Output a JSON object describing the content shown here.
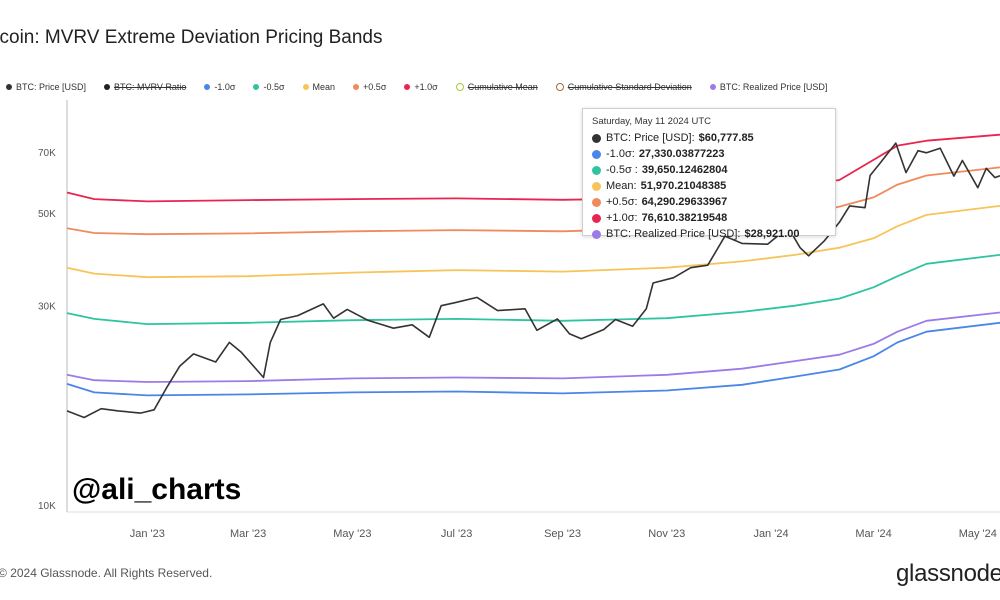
{
  "title": "itcoin: MVRV Extreme Deviation Pricing Bands",
  "legend": [
    {
      "label": "BTC: Price [USD]",
      "color": "#333333",
      "strike": false,
      "kind": "dot"
    },
    {
      "label": "BTC: MVRV Ratio",
      "color": "#222222",
      "strike": true,
      "kind": "dot"
    },
    {
      "label": "-1.0σ",
      "color": "#4a86e8",
      "strike": false,
      "kind": "dot"
    },
    {
      "label": "-0.5σ",
      "color": "#2ec4a0",
      "strike": false,
      "kind": "dot"
    },
    {
      "label": "Mean",
      "color": "#f7c45a",
      "strike": false,
      "kind": "dot"
    },
    {
      "label": "+0.5σ",
      "color": "#f08a5d",
      "strike": false,
      "kind": "dot"
    },
    {
      "label": "+1.0σ",
      "color": "#e8254f",
      "strike": false,
      "kind": "dot"
    },
    {
      "label": "Cumulative Mean",
      "color": "#a8c93a",
      "strike": true,
      "kind": "line"
    },
    {
      "label": "Cumulative Standard Deviation",
      "color": "#a0723a",
      "strike": true,
      "kind": "line"
    },
    {
      "label": "BTC: Realized Price [USD]",
      "color": "#9b7be8",
      "strike": false,
      "kind": "dot"
    }
  ],
  "tooltip": {
    "date": "Saturday, May 11 2024 UTC",
    "rows": [
      {
        "label": "BTC: Price [USD]:",
        "value": "$60,777.85",
        "color": "#333333"
      },
      {
        "label": "-1.0σ:",
        "value": "27,330.03877223",
        "color": "#4a86e8"
      },
      {
        "label": "-0.5σ :",
        "value": "39,650.12462804",
        "color": "#2ec4a0"
      },
      {
        "label": "Mean:",
        "value": "51,970.21048385",
        "color": "#f7c45a"
      },
      {
        "label": "+0.5σ:",
        "value": "64,290.29633967",
        "color": "#f08a5d"
      },
      {
        "label": "+1.0σ:",
        "value": "76,610.38219548",
        "color": "#e8254f"
      },
      {
        "label": "BTC: Realized Price [USD]:",
        "value": "$28,921.00",
        "color": "#9b7be8"
      }
    ]
  },
  "watermark": "@ali_charts",
  "copyright": "2024 Glassnode. All Rights Reserved.",
  "brand": "glassnode",
  "chart_data": {
    "type": "line",
    "title": "itcoin: MVRV Extreme Deviation Pricing Bands",
    "y_scale": "log",
    "ylim": [
      10000,
      78000
    ],
    "x_range": [
      "2022-11-15",
      "2024-05-14"
    ],
    "x_ticks": [
      "Jan '23",
      "Mar '23",
      "May '23",
      "Jul '23",
      "Sep '23",
      "Nov '23",
      "Jan '24",
      "Mar '24",
      "May '24"
    ],
    "x_tick_dates": [
      "2023-01-01",
      "2023-03-01",
      "2023-05-01",
      "2023-07-01",
      "2023-09-01",
      "2023-11-01",
      "2024-01-01",
      "2024-03-01",
      "2024-05-01"
    ],
    "y_ticks": [
      10000,
      30000,
      50000,
      70000
    ],
    "y_tick_labels": [
      "10K",
      "30K",
      "50K",
      "70K"
    ],
    "grid": false,
    "legend_position": "top",
    "series": [
      {
        "name": "+1.0σ",
        "color": "#e8254f",
        "points": [
          [
            "2022-11-15",
            56000
          ],
          [
            "2022-12-01",
            54000
          ],
          [
            "2023-01-01",
            53300
          ],
          [
            "2023-03-01",
            53700
          ],
          [
            "2023-05-01",
            54000
          ],
          [
            "2023-07-01",
            54200
          ],
          [
            "2023-09-01",
            53800
          ],
          [
            "2023-11-01",
            54300
          ],
          [
            "2023-12-15",
            56000
          ],
          [
            "2024-01-15",
            58000
          ],
          [
            "2024-02-10",
            60000
          ],
          [
            "2024-03-01",
            67000
          ],
          [
            "2024-03-15",
            72500
          ],
          [
            "2024-04-01",
            74500
          ],
          [
            "2024-05-14",
            77000
          ]
        ]
      },
      {
        "name": "+0.5σ",
        "color": "#f08a5d",
        "points": [
          [
            "2022-11-15",
            46000
          ],
          [
            "2022-12-01",
            44800
          ],
          [
            "2023-01-01",
            44500
          ],
          [
            "2023-03-01",
            44700
          ],
          [
            "2023-05-01",
            45200
          ],
          [
            "2023-07-01",
            45500
          ],
          [
            "2023-09-01",
            45200
          ],
          [
            "2023-11-01",
            46000
          ],
          [
            "2023-12-15",
            47200
          ],
          [
            "2024-01-15",
            49000
          ],
          [
            "2024-02-10",
            51800
          ],
          [
            "2024-03-01",
            54500
          ],
          [
            "2024-03-15",
            58500
          ],
          [
            "2024-04-01",
            61500
          ],
          [
            "2024-05-14",
            64300
          ]
        ]
      },
      {
        "name": "Mean",
        "color": "#f7c45a",
        "points": [
          [
            "2022-11-15",
            37000
          ],
          [
            "2022-12-01",
            35800
          ],
          [
            "2023-01-01",
            35100
          ],
          [
            "2023-03-01",
            35300
          ],
          [
            "2023-05-01",
            36000
          ],
          [
            "2023-07-01",
            36500
          ],
          [
            "2023-09-01",
            36200
          ],
          [
            "2023-11-01",
            37000
          ],
          [
            "2023-12-15",
            38300
          ],
          [
            "2024-01-15",
            39700
          ],
          [
            "2024-02-10",
            41300
          ],
          [
            "2024-03-01",
            43500
          ],
          [
            "2024-03-15",
            46500
          ],
          [
            "2024-04-01",
            49500
          ],
          [
            "2024-05-14",
            52000
          ]
        ]
      },
      {
        "name": "-0.5σ",
        "color": "#2ec4a0",
        "points": [
          [
            "2022-11-15",
            28800
          ],
          [
            "2022-12-01",
            27900
          ],
          [
            "2023-01-01",
            27100
          ],
          [
            "2023-03-01",
            27300
          ],
          [
            "2023-05-01",
            27700
          ],
          [
            "2023-07-01",
            27900
          ],
          [
            "2023-09-01",
            27600
          ],
          [
            "2023-11-01",
            28000
          ],
          [
            "2023-12-15",
            29000
          ],
          [
            "2024-01-15",
            30000
          ],
          [
            "2024-02-10",
            31200
          ],
          [
            "2024-03-01",
            33200
          ],
          [
            "2024-03-15",
            35300
          ],
          [
            "2024-04-01",
            37800
          ],
          [
            "2024-05-14",
            39700
          ]
        ]
      },
      {
        "name": "BTC: Realized Price [USD]",
        "color": "#9b7be8",
        "points": [
          [
            "2022-11-15",
            20500
          ],
          [
            "2022-12-01",
            19900
          ],
          [
            "2023-01-01",
            19700
          ],
          [
            "2023-03-01",
            19800
          ],
          [
            "2023-05-01",
            20100
          ],
          [
            "2023-07-01",
            20200
          ],
          [
            "2023-09-01",
            20100
          ],
          [
            "2023-11-01",
            20500
          ],
          [
            "2023-12-15",
            21200
          ],
          [
            "2024-01-15",
            22100
          ],
          [
            "2024-02-10",
            22900
          ],
          [
            "2024-03-01",
            24300
          ],
          [
            "2024-03-15",
            26000
          ],
          [
            "2024-04-01",
            27600
          ],
          [
            "2024-05-14",
            28900
          ]
        ]
      },
      {
        "name": "-1.0σ",
        "color": "#4a86e8",
        "points": [
          [
            "2022-11-15",
            19500
          ],
          [
            "2022-12-01",
            18600
          ],
          [
            "2023-01-01",
            18300
          ],
          [
            "2023-03-01",
            18400
          ],
          [
            "2023-05-01",
            18600
          ],
          [
            "2023-07-01",
            18700
          ],
          [
            "2023-09-01",
            18500
          ],
          [
            "2023-11-01",
            18800
          ],
          [
            "2023-12-15",
            19400
          ],
          [
            "2024-01-15",
            20300
          ],
          [
            "2024-02-10",
            21100
          ],
          [
            "2024-03-01",
            22700
          ],
          [
            "2024-03-15",
            24500
          ],
          [
            "2024-04-01",
            26000
          ],
          [
            "2024-05-14",
            27300
          ]
        ]
      },
      {
        "name": "BTC: Price [USD]",
        "color": "#333333",
        "points": [
          [
            "2022-11-15",
            16800
          ],
          [
            "2022-11-25",
            16200
          ],
          [
            "2022-12-05",
            17000
          ],
          [
            "2022-12-15",
            16800
          ],
          [
            "2022-12-28",
            16600
          ],
          [
            "2023-01-05",
            16900
          ],
          [
            "2023-01-12",
            19000
          ],
          [
            "2023-01-20",
            21500
          ],
          [
            "2023-01-28",
            23000
          ],
          [
            "2023-02-10",
            22000
          ],
          [
            "2023-02-18",
            24500
          ],
          [
            "2023-02-25",
            23200
          ],
          [
            "2023-03-10",
            20200
          ],
          [
            "2023-03-14",
            24500
          ],
          [
            "2023-03-20",
            27800
          ],
          [
            "2023-03-30",
            28400
          ],
          [
            "2023-04-14",
            30300
          ],
          [
            "2023-04-20",
            28000
          ],
          [
            "2023-04-28",
            29400
          ],
          [
            "2023-05-10",
            27700
          ],
          [
            "2023-05-25",
            26500
          ],
          [
            "2023-06-05",
            27000
          ],
          [
            "2023-06-15",
            25200
          ],
          [
            "2023-06-22",
            30000
          ],
          [
            "2023-06-30",
            30500
          ],
          [
            "2023-07-13",
            31400
          ],
          [
            "2023-07-25",
            29200
          ],
          [
            "2023-08-10",
            29500
          ],
          [
            "2023-08-17",
            26200
          ],
          [
            "2023-08-29",
            27900
          ],
          [
            "2023-09-05",
            25700
          ],
          [
            "2023-09-12",
            25000
          ],
          [
            "2023-09-25",
            26300
          ],
          [
            "2023-10-02",
            27800
          ],
          [
            "2023-10-12",
            26800
          ],
          [
            "2023-10-20",
            29500
          ],
          [
            "2023-10-24",
            34000
          ],
          [
            "2023-11-05",
            35000
          ],
          [
            "2023-11-15",
            37000
          ],
          [
            "2023-11-25",
            37500
          ],
          [
            "2023-12-05",
            44000
          ],
          [
            "2023-12-15",
            42300
          ],
          [
            "2023-12-30",
            42100
          ],
          [
            "2024-01-11",
            46200
          ],
          [
            "2024-01-18",
            41300
          ],
          [
            "2024-01-23",
            39500
          ],
          [
            "2024-02-01",
            42800
          ],
          [
            "2024-02-10",
            47500
          ],
          [
            "2024-02-16",
            52000
          ],
          [
            "2024-02-25",
            51500
          ],
          [
            "2024-02-28",
            61500
          ],
          [
            "2024-03-05",
            66000
          ],
          [
            "2024-03-14",
            73500
          ],
          [
            "2024-03-20",
            62500
          ],
          [
            "2024-03-27",
            70500
          ],
          [
            "2024-04-01",
            69700
          ],
          [
            "2024-04-09",
            71500
          ],
          [
            "2024-04-17",
            61300
          ],
          [
            "2024-04-22",
            66800
          ],
          [
            "2024-05-01",
            57500
          ],
          [
            "2024-05-06",
            64000
          ],
          [
            "2024-05-11",
            60800
          ],
          [
            "2024-05-14",
            61400
          ]
        ]
      }
    ]
  }
}
